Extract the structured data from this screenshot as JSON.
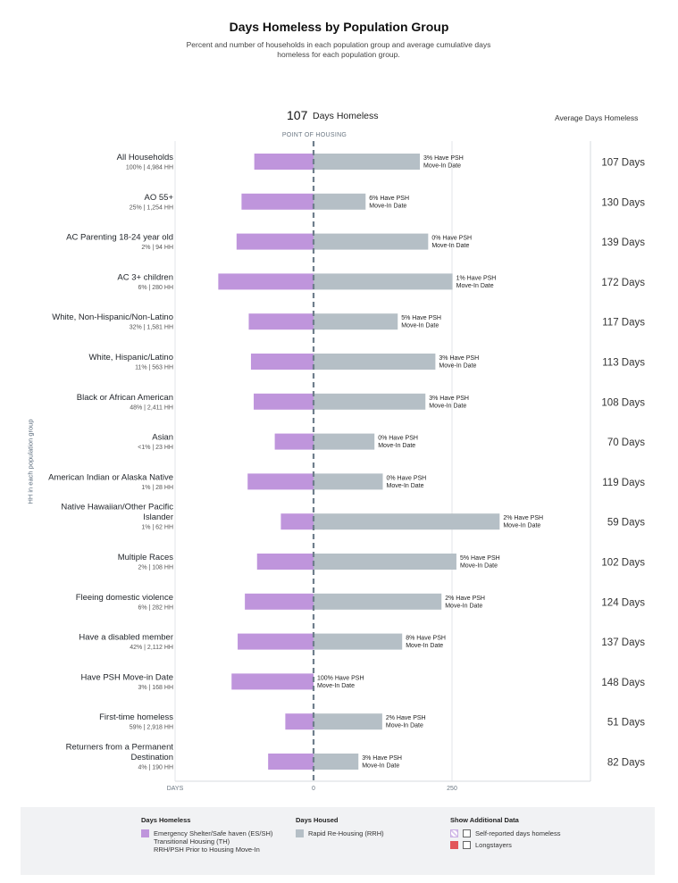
{
  "header": {
    "title": "Days Homeless by Population Group",
    "subtitle": "Percent and number of households in each population group and average cumulative days homeless for each population group."
  },
  "summary": {
    "value": "107",
    "unit": "Days Homeless",
    "avg_header": "Average Days Homeless",
    "point_of_housing": "POINT OF HOUSING",
    "y_axis_label": "HH in each population group"
  },
  "colors": {
    "homeless": "#bf95dc",
    "housed": "#b5bfc6",
    "midline": "#6f7e8c",
    "longstayers": "#e2565a"
  },
  "chart_data": {
    "type": "bar",
    "x_axis": {
      "ticks": [
        {
          "value": 0,
          "label": "0"
        },
        {
          "value": 250,
          "label": "250"
        }
      ],
      "left_label": "DAYS",
      "range": [
        -250,
        500
      ]
    },
    "groups": [
      {
        "label": [
          "All Households"
        ],
        "sub": "100% | 4,984 HH",
        "homeless": 107,
        "housed": 192,
        "psh": "3% Have PSH",
        "psh2": "Move-In Date",
        "avg": "107 Days"
      },
      {
        "label": [
          "AO 55+"
        ],
        "sub": "25% | 1,254 HH",
        "homeless": 130,
        "housed": 94,
        "psh": "6% Have PSH",
        "psh2": "Move-In Date",
        "avg": "130 Days"
      },
      {
        "label": [
          "AC Parenting 18-24 year old"
        ],
        "sub": "2% | 94 HH",
        "homeless": 139,
        "housed": 207,
        "psh": "0% Have PSH",
        "psh2": "Move-In Date",
        "avg": "139 Days"
      },
      {
        "label": [
          "AC 3+ children"
        ],
        "sub": "6% | 280 HH",
        "homeless": 172,
        "housed": 251,
        "psh": "1% Have PSH",
        "psh2": "Move-In Date",
        "avg": "172 Days"
      },
      {
        "label": [
          "White, Non-Hispanic/Non-Latino"
        ],
        "sub": "32% | 1,581 HH",
        "homeless": 117,
        "housed": 152,
        "psh": "5% Have PSH",
        "psh2": "Move-In Date",
        "avg": "117 Days"
      },
      {
        "label": [
          "White, Hispanic/Latino"
        ],
        "sub": "11% | 563 HH",
        "homeless": 113,
        "housed": 220,
        "psh": "3% Have PSH",
        "psh2": "Move-In Date",
        "avg": "113 Days"
      },
      {
        "label": [
          "Black or African American"
        ],
        "sub": "48% | 2,411 HH",
        "homeless": 108,
        "housed": 202,
        "psh": "3% Have PSH",
        "psh2": "Move-In Date",
        "avg": "108 Days"
      },
      {
        "label": [
          "Asian"
        ],
        "sub": "<1% | 23 HH",
        "homeless": 70,
        "housed": 110,
        "psh": "0% Have PSH",
        "psh2": "Move-In Date",
        "avg": "70 Days"
      },
      {
        "label": [
          "American Indian or Alaska Native"
        ],
        "sub": "1% | 28 HH",
        "homeless": 119,
        "housed": 125,
        "psh": "0% Have PSH",
        "psh2": "Move-In Date",
        "avg": "119 Days"
      },
      {
        "label": [
          "Native Hawaiian/Other Pacific",
          "Islander"
        ],
        "sub": "1% | 62 HH",
        "homeless": 59,
        "housed": 336,
        "psh": "2% Have PSH",
        "psh2": "Move-In Date",
        "avg": "59 Days"
      },
      {
        "label": [
          "Multiple Races"
        ],
        "sub": "2% | 108 HH",
        "homeless": 102,
        "housed": 258,
        "psh": "5% Have PSH",
        "psh2": "Move-In Date",
        "avg": "102 Days"
      },
      {
        "label": [
          "Fleeing domestic violence"
        ],
        "sub": "6% | 282 HH",
        "homeless": 124,
        "housed": 231,
        "psh": "2% Have PSH",
        "psh2": "Move-In Date",
        "avg": "124 Days"
      },
      {
        "label": [
          "Have a disabled member"
        ],
        "sub": "42% | 2,112 HH",
        "homeless": 137,
        "housed": 160,
        "psh": "8% Have PSH",
        "psh2": "Move-In Date",
        "avg": "137 Days"
      },
      {
        "label": [
          "Have PSH Move-in Date"
        ],
        "sub": "3% | 168 HH",
        "homeless": 148,
        "housed": 0,
        "psh": "100% Have PSH",
        "psh2": "Move-In Date",
        "avg": "148 Days"
      },
      {
        "label": [
          "First-time homeless"
        ],
        "sub": "59% | 2,918 HH",
        "homeless": 51,
        "housed": 124,
        "psh": "2% Have PSH",
        "psh2": "Move-In Date",
        "avg": "51 Days"
      },
      {
        "label": [
          "Returners from a Permanent",
          "Destination"
        ],
        "sub": "4% | 190 HH",
        "homeless": 82,
        "housed": 81,
        "psh": "3% Have PSH",
        "psh2": "Move-In Date",
        "avg": "82 Days"
      }
    ]
  },
  "legend": {
    "homeless_head": "Days Homeless",
    "homeless_lines": [
      "Emergency Shelter/Safe haven (ES/SH)",
      "Transitional Housing (TH)",
      "RRH/PSH Prior to Housing Move-In"
    ],
    "housed_head": "Days Housed",
    "housed_item": "Rapid Re-Housing (RRH)",
    "additional_head": "Show Additional Data",
    "self_reported": "Self-reported days homeless",
    "longstayers": "Longstayers"
  }
}
